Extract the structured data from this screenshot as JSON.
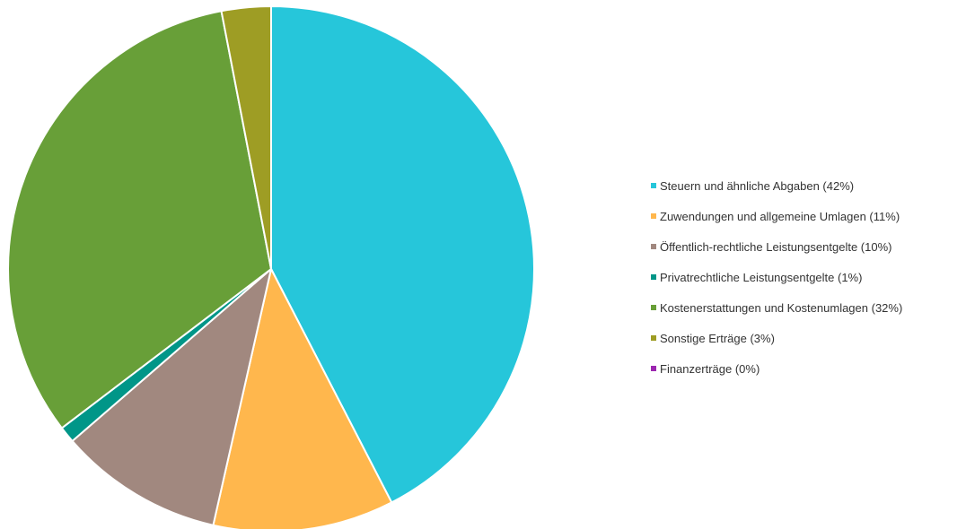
{
  "chart_data": {
    "type": "pie",
    "title": "",
    "legend_position": "right",
    "start_angle_deg": 0,
    "direction": "clockwise",
    "slices": [
      {
        "label": "Steuern und ähnliche Abgaben (42%)",
        "value": 42,
        "color": "#26C6DA"
      },
      {
        "label": "Zuwendungen und allgemeine Umlagen (11%)",
        "value": 11,
        "color": "#FFB74D"
      },
      {
        "label": "Öffentlich-rechtliche Leistungsentgelte (10%)",
        "value": 10,
        "color": "#A1887F"
      },
      {
        "label": "Privatrechtliche Leistungsentgelte (1%)",
        "value": 1,
        "color": "#009688"
      },
      {
        "label": "Kostenerstattungen und Kostenumlagen (32%)",
        "value": 32,
        "color": "#689F38"
      },
      {
        "label": "Sonstige Erträge (3%)",
        "value": 3,
        "color": "#9E9D24"
      },
      {
        "label": "Finanzerträge (0%)",
        "value": 0,
        "color": "#9C27B0"
      }
    ]
  }
}
